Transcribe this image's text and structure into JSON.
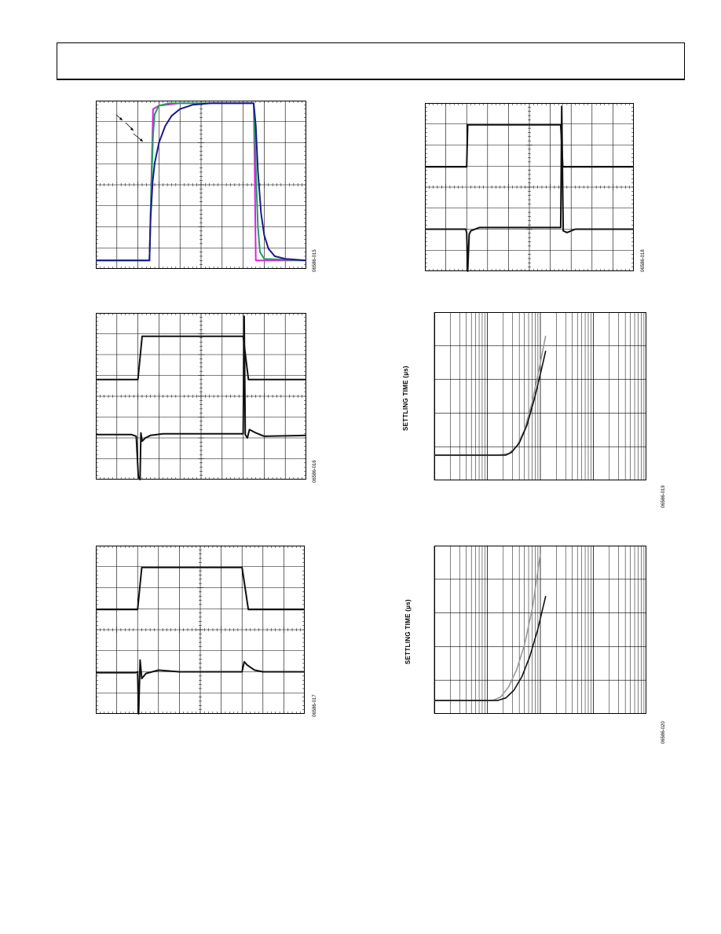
{
  "chart_data": [
    {
      "id": "fig015",
      "type": "line",
      "figure_id": "06586-015",
      "series": [
        {
          "color": "#e020e0",
          "points": [
            [
              0,
              0.05
            ],
            [
              2.55,
              0.05
            ],
            [
              2.72,
              0.95
            ],
            [
              3.0,
              0.97
            ],
            [
              4.0,
              0.985
            ],
            [
              7.5,
              0.985
            ],
            [
              7.5,
              0.985
            ],
            [
              7.55,
              0.6
            ],
            [
              7.6,
              0.05
            ],
            [
              10,
              0.05
            ]
          ]
        },
        {
          "color": "#1aa060",
          "points": [
            [
              0,
              0.05
            ],
            [
              2.55,
              0.05
            ],
            [
              2.58,
              0.2
            ],
            [
              2.64,
              0.5
            ],
            [
              2.72,
              0.8
            ],
            [
              2.8,
              0.92
            ],
            [
              3.0,
              0.97
            ],
            [
              3.5,
              0.985
            ],
            [
              7.5,
              0.985
            ],
            [
              7.53,
              0.9
            ],
            [
              7.6,
              0.6
            ],
            [
              7.7,
              0.25
            ],
            [
              7.8,
              0.1
            ],
            [
              8.0,
              0.06
            ],
            [
              10,
              0.05
            ]
          ]
        },
        {
          "color": "#1a1a8c",
          "points": [
            [
              0,
              0.05
            ],
            [
              2.55,
              0.05
            ],
            [
              2.6,
              0.3
            ],
            [
              2.7,
              0.52
            ],
            [
              2.8,
              0.63
            ],
            [
              3.0,
              0.75
            ],
            [
              3.3,
              0.85
            ],
            [
              3.6,
              0.91
            ],
            [
              4.0,
              0.95
            ],
            [
              4.6,
              0.975
            ],
            [
              5.5,
              0.985
            ],
            [
              7.5,
              0.985
            ],
            [
              7.6,
              0.85
            ],
            [
              7.7,
              0.58
            ],
            [
              7.85,
              0.33
            ],
            [
              8.0,
              0.2
            ],
            [
              8.2,
              0.12
            ],
            [
              8.5,
              0.075
            ],
            [
              9.0,
              0.06
            ],
            [
              10,
              0.05
            ]
          ]
        }
      ]
    },
    {
      "id": "fig016",
      "type": "line",
      "figure_id": "06586-016",
      "series": [
        {
          "color": "#111111",
          "points": [
            [
              0,
              0.6
            ],
            [
              2.0,
              0.6
            ],
            [
              2.2,
              0.86
            ],
            [
              7.0,
              0.86
            ],
            [
              7.25,
              0.6
            ],
            [
              10,
              0.6
            ]
          ]
        },
        {
          "color": "#111111",
          "points": [
            [
              0,
              0.27
            ],
            [
              1.7,
              0.27
            ],
            [
              1.92,
              0.26
            ],
            [
              2.02,
              0.02
            ],
            [
              2.1,
              0.0
            ],
            [
              2.14,
              0.28
            ],
            [
              2.2,
              0.23
            ],
            [
              2.35,
              0.25
            ],
            [
              2.6,
              0.265
            ],
            [
              3.2,
              0.275
            ],
            [
              7.0,
              0.275
            ],
            [
              7.05,
              0.98
            ],
            [
              7.1,
              0.27
            ],
            [
              7.2,
              0.25
            ],
            [
              7.3,
              0.3
            ],
            [
              7.6,
              0.28
            ],
            [
              8.0,
              0.26
            ],
            [
              10,
              0.265
            ]
          ]
        }
      ]
    },
    {
      "id": "fig017",
      "type": "line",
      "figure_id": "06586-017",
      "series": [
        {
          "color": "#111111",
          "points": [
            [
              0,
              0.62
            ],
            [
              2.0,
              0.62
            ],
            [
              2.2,
              0.87
            ],
            [
              7.0,
              0.87
            ],
            [
              7.3,
              0.62
            ],
            [
              10,
              0.62
            ]
          ]
        },
        {
          "color": "#111111",
          "points": [
            [
              0,
              0.245
            ],
            [
              1.9,
              0.245
            ],
            [
              2.0,
              0.25
            ],
            [
              2.05,
              0.0
            ],
            [
              2.12,
              0.32
            ],
            [
              2.2,
              0.21
            ],
            [
              2.4,
              0.24
            ],
            [
              3.0,
              0.26
            ],
            [
              4.0,
              0.25
            ],
            [
              7.0,
              0.25
            ],
            [
              7.1,
              0.31
            ],
            [
              7.25,
              0.29
            ],
            [
              7.6,
              0.26
            ],
            [
              8.0,
              0.25
            ],
            [
              10,
              0.25
            ]
          ]
        }
      ]
    },
    {
      "id": "fig018",
      "type": "line",
      "figure_id": "06586-018",
      "series": [
        {
          "color": "#111111",
          "points": [
            [
              0,
              0.62
            ],
            [
              2.0,
              0.62
            ],
            [
              2.05,
              0.87
            ],
            [
              6.5,
              0.87
            ],
            [
              6.6,
              0.62
            ],
            [
              10,
              0.62
            ]
          ]
        },
        {
          "color": "#111111",
          "points": [
            [
              0,
              0.25
            ],
            [
              1.95,
              0.25
            ],
            [
              2.0,
              0.23
            ],
            [
              2.05,
              0.0
            ],
            [
              2.12,
              0.22
            ],
            [
              2.2,
              0.24
            ],
            [
              2.6,
              0.26
            ],
            [
              6.5,
              0.26
            ],
            [
              6.55,
              0.98
            ],
            [
              6.62,
              0.24
            ],
            [
              6.8,
              0.23
            ],
            [
              7.2,
              0.25
            ],
            [
              10,
              0.25
            ]
          ]
        }
      ]
    },
    {
      "id": "fig019",
      "type": "line",
      "figure_id": "06586-019",
      "ylabel": "SETTLING TIME (µs)",
      "series": [
        {
          "color": "#999999",
          "points": [
            [
              -1.0,
              0.15
            ],
            [
              0.2,
              0.15
            ],
            [
              0.4,
              0.16
            ],
            [
              0.55,
              0.2
            ],
            [
              0.7,
              0.3
            ],
            [
              0.85,
              0.47
            ],
            [
              1.0,
              0.7
            ],
            [
              1.1,
              0.86
            ]
          ]
        },
        {
          "color": "#111111",
          "points": [
            [
              -1.0,
              0.15
            ],
            [
              0.35,
              0.15
            ],
            [
              0.45,
              0.165
            ],
            [
              0.6,
              0.22
            ],
            [
              0.75,
              0.33
            ],
            [
              0.9,
              0.5
            ],
            [
              1.05,
              0.7
            ],
            [
              1.1,
              0.77
            ]
          ]
        }
      ]
    },
    {
      "id": "fig020",
      "type": "line",
      "figure_id": "06586-020",
      "ylabel": "SETTLING TIME (µs)",
      "series": [
        {
          "color": "#999999",
          "points": [
            [
              -1.0,
              0.08
            ],
            [
              0.1,
              0.08
            ],
            [
              0.25,
              0.1
            ],
            [
              0.4,
              0.16
            ],
            [
              0.55,
              0.26
            ],
            [
              0.7,
              0.41
            ],
            [
              0.85,
              0.63
            ],
            [
              1.0,
              0.95
            ]
          ]
        },
        {
          "color": "#111111",
          "points": [
            [
              -1.0,
              0.08
            ],
            [
              0.2,
              0.08
            ],
            [
              0.35,
              0.095
            ],
            [
              0.5,
              0.14
            ],
            [
              0.65,
              0.22
            ],
            [
              0.8,
              0.34
            ],
            [
              0.95,
              0.5
            ],
            [
              1.1,
              0.7
            ]
          ]
        }
      ]
    }
  ]
}
